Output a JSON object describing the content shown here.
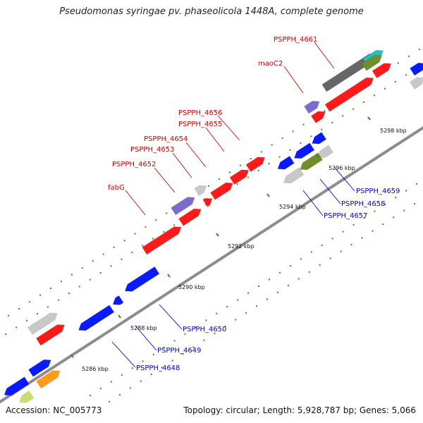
{
  "title": "Pseudomonas syringae pv. phaseolicola 1448A, complete genome",
  "footer": {
    "accession": "Accession: NC_005773",
    "summary": "Topology: circular; Length: 5,928,787 bp; Genes: 5,066"
  },
  "colors": {
    "backbone": "#8c8c8c",
    "tick_dot": "#2e8b2e",
    "label_forward": "#cc0000",
    "label_reverse": "#0000cc",
    "red": "#ff1a1a",
    "blue": "#0a1aff",
    "gray": "#c8c8c8",
    "darkgray": "#666666",
    "purple": "#7b6ccc",
    "olive": "#6f8f2a",
    "cyan": "#22c2c2",
    "orange": "#ff9a1a",
    "yellowgreen": "#c8e06a"
  },
  "kbp_labels": [
    "5286 kbp",
    "5288 kbp",
    "5290 kbp",
    "5292 kbp",
    "5294 kbp",
    "5296 kbp",
    "5298 kbp"
  ],
  "gene_labels_forward": [
    "PSPPH_4661",
    "maoC2",
    "PSPPH_4656",
    "PSPPH_4655",
    "PSPPH_4654",
    "PSPPH_4653",
    "PSPPH_4652",
    "fabG"
  ],
  "gene_labels_reverse": [
    "PSPPH_4659",
    "PSPPH_4658",
    "PSPPH_4657",
    "PSPPH_4650",
    "PSPPH_4649",
    "PSPPH_4648"
  ]
}
